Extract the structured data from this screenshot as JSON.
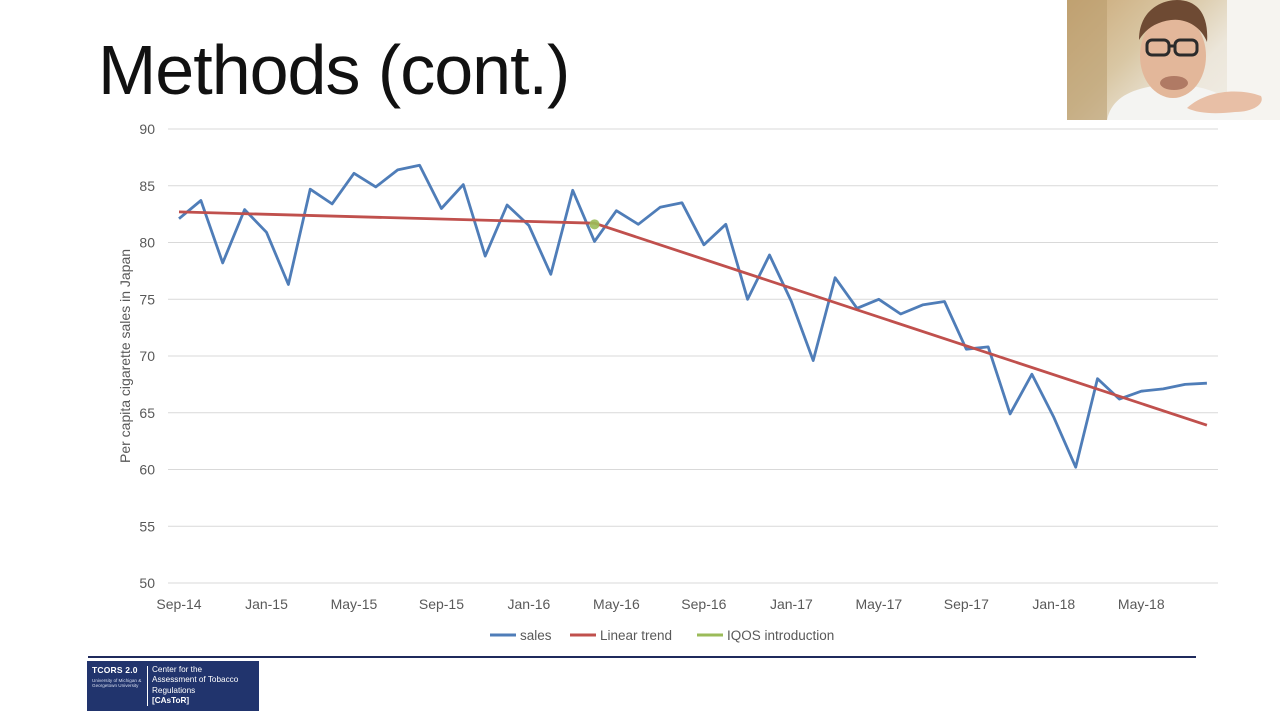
{
  "slide": {
    "title": "Methods (cont.)"
  },
  "chart_data": {
    "type": "line",
    "title": "",
    "xlabel": "",
    "ylabel": "Per capita cigarette sales in Japan",
    "ylim": [
      50,
      90
    ],
    "yticks": [
      "50",
      "55",
      "60",
      "65",
      "70",
      "75",
      "80",
      "85",
      "90"
    ],
    "xtick_labels": [
      "Sep-14",
      "Jan-15",
      "May-15",
      "Sep-15",
      "Jan-16",
      "May-16",
      "Sep-16",
      "Jan-17",
      "May-17",
      "Sep-17",
      "Jan-18",
      "May-18"
    ],
    "x": [
      "Sep-14",
      "Oct-14",
      "Nov-14",
      "Dec-14",
      "Jan-15",
      "Feb-15",
      "Mar-15",
      "Apr-15",
      "May-15",
      "Jun-15",
      "Jul-15",
      "Aug-15",
      "Sep-15",
      "Oct-15",
      "Nov-15",
      "Dec-15",
      "Jan-16",
      "Feb-16",
      "Mar-16",
      "Apr-16",
      "May-16",
      "Jun-16",
      "Jul-16",
      "Aug-16",
      "Sep-16",
      "Oct-16",
      "Nov-16",
      "Dec-16",
      "Jan-17",
      "Feb-17",
      "Mar-17",
      "Apr-17",
      "May-17",
      "Jun-17",
      "Jul-17",
      "Aug-17",
      "Sep-17",
      "Oct-17",
      "Nov-17",
      "Dec-17",
      "Jan-18",
      "Feb-18",
      "Mar-18",
      "Apr-18",
      "May-18",
      "Jun-18",
      "Jul-18",
      "Aug-18"
    ],
    "grid": true,
    "legend_position": "bottom",
    "series": [
      {
        "name": "sales",
        "color": "#4f7db8",
        "values": [
          82.1,
          83.7,
          78.2,
          82.9,
          80.9,
          76.3,
          84.7,
          83.4,
          86.1,
          84.9,
          86.4,
          86.8,
          83.0,
          85.1,
          78.8,
          83.3,
          81.5,
          77.2,
          84.6,
          80.1,
          82.8,
          81.6,
          83.1,
          83.5,
          79.8,
          81.6,
          75.0,
          78.9,
          74.8,
          69.6,
          76.9,
          74.2,
          75.0,
          73.7,
          74.5,
          74.8,
          70.6,
          70.8,
          64.9,
          68.4,
          64.6,
          60.2,
          68.0,
          66.2,
          66.9,
          67.1,
          67.5,
          67.6
        ]
      },
      {
        "name": "Linear trend",
        "color": "#c0504d",
        "points": [
          [
            "Sep-14",
            82.7
          ],
          [
            "Apr-16",
            81.7
          ],
          [
            "Aug-18",
            63.9
          ]
        ]
      },
      {
        "name": "IQOS introduction",
        "color": "#9bbb59",
        "points": [
          [
            "Apr-16",
            81.6
          ]
        ]
      }
    ]
  },
  "footer": {
    "logo_code": "TCORS 2.0",
    "logo_sub": "University of Michigan & Georgetown University",
    "logo_lines": [
      "Center for the",
      "Assessment of Tobacco",
      "Regulations",
      "[CAsToR]"
    ]
  }
}
